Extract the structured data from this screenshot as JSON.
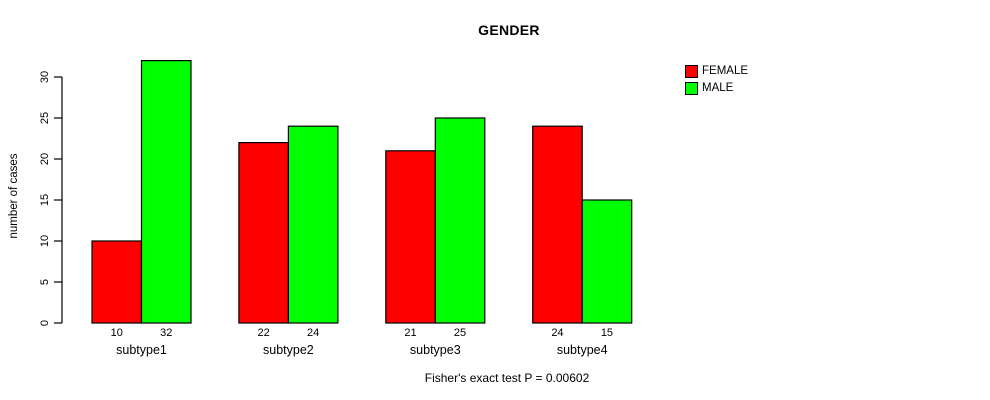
{
  "chart_data": {
    "type": "bar",
    "grouped": true,
    "title": "GENDER",
    "xlabel": "",
    "ylabel": "number of cases",
    "categories": [
      "subtype1",
      "subtype2",
      "subtype3",
      "subtype4"
    ],
    "series": [
      {
        "name": "FEMALE",
        "color": "#ff0000",
        "values": [
          10,
          22,
          21,
          24
        ]
      },
      {
        "name": "MALE",
        "color": "#00ff00",
        "values": [
          32,
          24,
          25,
          15
        ]
      }
    ],
    "ylim": [
      0,
      32
    ],
    "yticks": [
      0,
      5,
      10,
      15,
      20,
      25,
      30
    ],
    "grid": false,
    "bar_value_labels": [
      [
        "10",
        "32"
      ],
      [
        "22",
        "24"
      ],
      [
        "21",
        "25"
      ],
      [
        "24",
        "15"
      ]
    ],
    "legend_position": "top-right",
    "annotation": "Fisher's exact test P = 0.00602",
    "colors": {
      "axis": "#000000",
      "background": "#ffffff"
    }
  }
}
